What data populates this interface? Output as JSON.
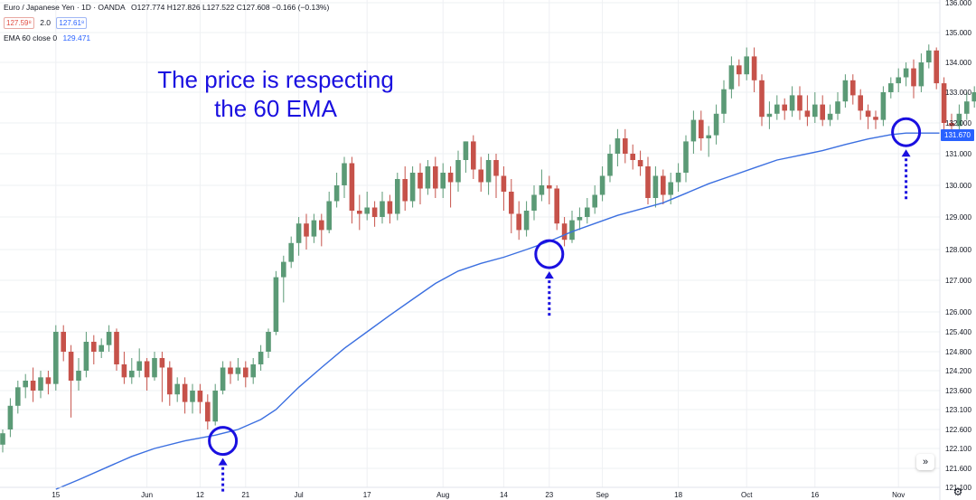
{
  "header": {
    "symbol": "Euro / Japanese Yen · 1D · OANDA",
    "ohlc": "O127.774 H127.826 L127.522 C127.608 −0.166 (−0.13%)",
    "bid": "127.59⁸",
    "spread": "2.0",
    "ask": "127.61⁸",
    "indicator_name": "EMA 60 close 0",
    "indicator_value": "129.471"
  },
  "annotation": {
    "line1": "The price is respecting",
    "line2": "the 60 EMA"
  },
  "price_tag": "131.670",
  "nav_icon": "double-chevron-right-icon",
  "settings_icon": "gear-icon",
  "colors": {
    "up": "#5b9a76",
    "down": "#c6524a",
    "ema": "#3b6fe0",
    "annotation": "#1a10e0",
    "grid": "#eef0f3"
  },
  "chart_data": {
    "type": "candlestick",
    "title": "",
    "xlabel": "",
    "ylabel": "",
    "ylim": [
      120.85,
      136.0
    ],
    "y_ticks": [
      "136.000",
      "135.000",
      "134.000",
      "133.000",
      "132.000",
      "131.000",
      "130.000",
      "129.000",
      "128.000",
      "127.000",
      "126.000",
      "125.400",
      "124.800",
      "124.200",
      "123.600",
      "123.100",
      "122.600",
      "122.100",
      "121.600",
      "121.100"
    ],
    "x_ticks": [
      {
        "label": "15",
        "index": 7
      },
      {
        "label": "Jun",
        "index": 19
      },
      {
        "label": "12",
        "index": 26
      },
      {
        "label": "21",
        "index": 32
      },
      {
        "label": "Jul",
        "index": 39
      },
      {
        "label": "17",
        "index": 48
      },
      {
        "label": "Aug",
        "index": 58
      },
      {
        "label": "14",
        "index": 66
      },
      {
        "label": "23",
        "index": 72
      },
      {
        "label": "Sep",
        "index": 79
      },
      {
        "label": "18",
        "index": 89
      },
      {
        "label": "Oct",
        "index": 98
      },
      {
        "label": "16",
        "index": 107
      },
      {
        "label": "Nov",
        "index": 118
      }
    ],
    "candles": [
      [
        122.2,
        122.5,
        122.0,
        122.6
      ],
      [
        122.6,
        123.2,
        122.4,
        123.4
      ],
      [
        123.2,
        123.7,
        123.0,
        123.9
      ],
      [
        123.7,
        123.9,
        123.4,
        124.1
      ],
      [
        123.9,
        123.6,
        123.3,
        124.3
      ],
      [
        123.6,
        124.0,
        123.4,
        124.2
      ],
      [
        124.0,
        123.8,
        123.5,
        124.2
      ],
      [
        123.8,
        125.4,
        123.6,
        125.6
      ],
      [
        125.4,
        124.8,
        124.5,
        125.6
      ],
      [
        124.8,
        123.9,
        122.9,
        125.0
      ],
      [
        123.9,
        124.2,
        123.6,
        124.6
      ],
      [
        124.2,
        125.1,
        124.0,
        125.4
      ],
      [
        125.1,
        124.8,
        124.4,
        125.3
      ],
      [
        124.8,
        125.0,
        124.6,
        125.2
      ],
      [
        125.0,
        125.4,
        124.8,
        125.6
      ],
      [
        125.4,
        124.4,
        124.2,
        125.5
      ],
      [
        124.4,
        124.0,
        123.8,
        124.8
      ],
      [
        124.0,
        124.2,
        123.8,
        124.6
      ],
      [
        124.2,
        124.5,
        124.0,
        124.9
      ],
      [
        124.5,
        124.0,
        123.6,
        124.6
      ],
      [
        124.0,
        124.6,
        123.9,
        124.8
      ],
      [
        124.6,
        124.3,
        123.3,
        124.8
      ],
      [
        124.3,
        123.5,
        123.2,
        124.5
      ],
      [
        123.5,
        123.8,
        123.3,
        124.0
      ],
      [
        123.8,
        123.3,
        123.0,
        124.0
      ],
      [
        123.3,
        123.6,
        123.0,
        123.8
      ],
      [
        123.6,
        123.3,
        123.0,
        123.8
      ],
      [
        123.3,
        122.8,
        122.6,
        123.5
      ],
      [
        122.8,
        123.6,
        122.7,
        123.8
      ],
      [
        123.6,
        124.3,
        123.5,
        124.5
      ],
      [
        124.3,
        124.1,
        123.8,
        124.5
      ],
      [
        124.1,
        124.3,
        123.9,
        124.6
      ],
      [
        124.3,
        124.0,
        123.7,
        124.5
      ],
      [
        124.0,
        124.4,
        123.8,
        124.6
      ],
      [
        124.4,
        124.8,
        124.2,
        125.0
      ],
      [
        124.8,
        125.4,
        124.6,
        125.5
      ],
      [
        125.4,
        127.1,
        125.3,
        127.3
      ],
      [
        127.1,
        127.6,
        126.3,
        127.8
      ],
      [
        127.6,
        128.2,
        127.4,
        128.4
      ],
      [
        128.2,
        128.8,
        127.8,
        129.0
      ],
      [
        128.8,
        128.4,
        128.0,
        129.1
      ],
      [
        128.4,
        128.9,
        128.2,
        129.1
      ],
      [
        128.9,
        128.6,
        128.1,
        129.1
      ],
      [
        128.6,
        129.5,
        128.5,
        129.8
      ],
      [
        129.5,
        130.0,
        129.3,
        130.4
      ],
      [
        130.0,
        130.7,
        129.6,
        130.9
      ],
      [
        130.7,
        129.2,
        128.8,
        130.9
      ],
      [
        129.2,
        129.1,
        128.6,
        129.7
      ],
      [
        129.1,
        129.3,
        128.9,
        129.8
      ],
      [
        129.3,
        129.0,
        128.7,
        129.5
      ],
      [
        129.0,
        129.5,
        128.8,
        129.8
      ],
      [
        129.5,
        129.1,
        128.8,
        129.7
      ],
      [
        129.1,
        130.2,
        128.9,
        130.4
      ],
      [
        130.2,
        129.5,
        129.2,
        130.6
      ],
      [
        129.5,
        130.4,
        129.3,
        130.6
      ],
      [
        130.4,
        129.9,
        129.4,
        130.7
      ],
      [
        129.9,
        130.6,
        129.7,
        130.8
      ],
      [
        130.6,
        129.9,
        129.6,
        130.9
      ],
      [
        129.9,
        130.4,
        129.6,
        130.7
      ],
      [
        130.4,
        130.1,
        129.3,
        130.6
      ],
      [
        130.1,
        130.8,
        129.8,
        131.1
      ],
      [
        130.8,
        131.4,
        130.4,
        131.4
      ],
      [
        131.4,
        130.5,
        130.2,
        131.6
      ],
      [
        130.5,
        130.1,
        129.8,
        130.9
      ],
      [
        130.1,
        130.8,
        129.7,
        131.0
      ],
      [
        130.8,
        130.3,
        129.6,
        131.0
      ],
      [
        130.3,
        129.8,
        129.2,
        130.6
      ],
      [
        129.8,
        129.1,
        128.5,
        130.2
      ],
      [
        129.1,
        128.6,
        128.3,
        129.5
      ],
      [
        128.6,
        129.2,
        128.4,
        129.5
      ],
      [
        129.2,
        129.7,
        128.9,
        130.0
      ],
      [
        129.7,
        130.0,
        129.5,
        130.5
      ],
      [
        130.0,
        129.9,
        129.4,
        130.3
      ],
      [
        129.9,
        128.8,
        128.6,
        130.0
      ],
      [
        128.8,
        128.3,
        128.1,
        129.0
      ],
      [
        128.3,
        128.9,
        128.2,
        129.2
      ],
      [
        128.9,
        129.0,
        128.6,
        129.3
      ],
      [
        129.0,
        129.3,
        128.8,
        129.6
      ],
      [
        129.3,
        129.7,
        129.1,
        130.0
      ],
      [
        129.7,
        130.3,
        129.5,
        130.6
      ],
      [
        130.3,
        131.0,
        130.1,
        131.3
      ],
      [
        131.0,
        131.5,
        130.6,
        131.8
      ],
      [
        131.5,
        131.0,
        130.7,
        131.8
      ],
      [
        131.0,
        130.8,
        130.5,
        131.3
      ],
      [
        130.8,
        130.6,
        130.3,
        131.1
      ],
      [
        130.6,
        129.6,
        129.4,
        130.9
      ],
      [
        129.6,
        130.3,
        129.3,
        130.6
      ],
      [
        130.3,
        129.7,
        129.4,
        130.5
      ],
      [
        129.7,
        130.1,
        129.4,
        130.4
      ],
      [
        130.1,
        130.4,
        129.8,
        130.7
      ],
      [
        130.4,
        131.4,
        130.1,
        131.6
      ],
      [
        131.4,
        132.1,
        131.0,
        132.4
      ],
      [
        132.1,
        131.5,
        131.1,
        132.4
      ],
      [
        131.5,
        131.6,
        130.9,
        131.9
      ],
      [
        131.6,
        132.3,
        131.3,
        132.6
      ],
      [
        132.3,
        133.1,
        132.0,
        133.4
      ],
      [
        133.1,
        133.9,
        132.8,
        134.2
      ],
      [
        133.9,
        133.6,
        133.2,
        134.1
      ],
      [
        133.6,
        134.2,
        133.4,
        134.5
      ],
      [
        134.2,
        133.4,
        133.0,
        134.5
      ],
      [
        133.4,
        132.2,
        131.9,
        133.6
      ],
      [
        132.2,
        132.3,
        131.8,
        132.7
      ],
      [
        132.3,
        132.6,
        132.1,
        132.9
      ],
      [
        132.6,
        132.4,
        132.1,
        132.8
      ],
      [
        132.4,
        132.9,
        132.2,
        133.2
      ],
      [
        132.9,
        132.4,
        132.1,
        133.2
      ],
      [
        132.4,
        132.2,
        131.9,
        132.9
      ],
      [
        132.2,
        132.6,
        132.0,
        133.0
      ],
      [
        132.6,
        132.1,
        131.9,
        132.9
      ],
      [
        132.1,
        132.3,
        131.9,
        132.6
      ],
      [
        132.3,
        132.7,
        132.1,
        133.0
      ],
      [
        132.7,
        133.4,
        132.5,
        133.6
      ],
      [
        133.4,
        132.9,
        132.6,
        133.6
      ],
      [
        132.9,
        132.4,
        132.1,
        133.1
      ],
      [
        132.4,
        132.2,
        131.8,
        132.6
      ],
      [
        132.2,
        132.1,
        131.8,
        132.4
      ],
      [
        132.1,
        133.0,
        131.9,
        133.2
      ],
      [
        133.0,
        133.3,
        132.8,
        133.5
      ],
      [
        133.3,
        133.5,
        133.0,
        133.8
      ],
      [
        133.5,
        133.8,
        133.2,
        134.0
      ],
      [
        133.8,
        133.2,
        132.8,
        134.1
      ],
      [
        133.2,
        134.0,
        133.0,
        134.3
      ],
      [
        134.0,
        134.4,
        133.8,
        134.6
      ],
      [
        134.4,
        133.3,
        133.1,
        134.5
      ],
      [
        133.3,
        132.0,
        131.7,
        133.5
      ],
      [
        132.0,
        131.9,
        131.6,
        132.3
      ],
      [
        131.9,
        132.3,
        131.7,
        132.6
      ],
      [
        132.3,
        132.7,
        132.1,
        133.0
      ],
      [
        132.7,
        133.0,
        132.5,
        133.2
      ],
      [
        133.0,
        132.8,
        132.5,
        133.2
      ]
    ],
    "ema_series": {
      "name": "EMA 60 close 0",
      "values": [
        [
          7,
          121.05
        ],
        [
          10,
          121.3
        ],
        [
          14,
          121.65
        ],
        [
          17,
          121.9
        ],
        [
          20,
          122.1
        ],
        [
          24,
          122.3
        ],
        [
          28,
          122.45
        ],
        [
          31,
          122.6
        ],
        [
          34,
          122.85
        ],
        [
          36,
          123.1
        ],
        [
          39,
          123.7
        ],
        [
          42,
          124.3
        ],
        [
          45,
          124.9
        ],
        [
          48,
          125.4
        ],
        [
          51,
          125.9
        ],
        [
          54,
          126.4
        ],
        [
          57,
          126.9
        ],
        [
          60,
          127.3
        ],
        [
          63,
          127.55
        ],
        [
          66,
          127.75
        ],
        [
          69,
          128.0
        ],
        [
          72,
          128.25
        ],
        [
          75,
          128.55
        ],
        [
          78,
          128.8
        ],
        [
          81,
          129.05
        ],
        [
          84,
          129.25
        ],
        [
          87,
          129.45
        ],
        [
          90,
          129.75
        ],
        [
          93,
          130.05
        ],
        [
          96,
          130.3
        ],
        [
          99,
          130.55
        ],
        [
          102,
          130.8
        ],
        [
          105,
          130.95
        ],
        [
          108,
          131.1
        ],
        [
          111,
          131.3
        ],
        [
          114,
          131.48
        ],
        [
          117,
          131.62
        ],
        [
          119,
          131.67
        ]
      ]
    }
  }
}
